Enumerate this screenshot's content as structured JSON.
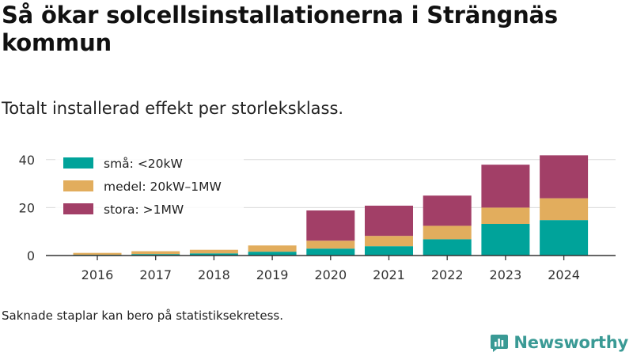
{
  "title": "Så ökar solcellsinstallationerna i Strängnäs kommun",
  "subtitle": "Totalt installerad effekt per storleksklass.",
  "footnote": "Saknade staplar kan bero på statistiksekretess.",
  "brand": {
    "name": "Newsworthy",
    "color": "#3a9a95"
  },
  "chart_data": {
    "type": "bar",
    "stacked": true,
    "categories": [
      "2016",
      "2017",
      "2018",
      "2019",
      "2020",
      "2021",
      "2022",
      "2023",
      "2024"
    ],
    "series": [
      {
        "name": "små: <20kW",
        "color": "#00a39a",
        "values": [
          0.3,
          0.6,
          0.9,
          1.6,
          2.9,
          3.9,
          6.8,
          13.2,
          14.8
        ]
      },
      {
        "name": "medel: 20kW–1MW",
        "color": "#e2ad5d",
        "values": [
          0.8,
          1.2,
          1.5,
          2.6,
          3.3,
          4.3,
          5.6,
          6.8,
          9.1
        ]
      },
      {
        "name": "stora: >1MW",
        "color": "#a23f67",
        "values": [
          0,
          0,
          0,
          0,
          12.6,
          12.6,
          12.6,
          17.9,
          17.9
        ]
      }
    ],
    "yticks": [
      0,
      20,
      40
    ],
    "ylim": [
      0,
      43
    ],
    "grid": true,
    "legend": "top-left",
    "xlabel": "",
    "ylabel": ""
  }
}
